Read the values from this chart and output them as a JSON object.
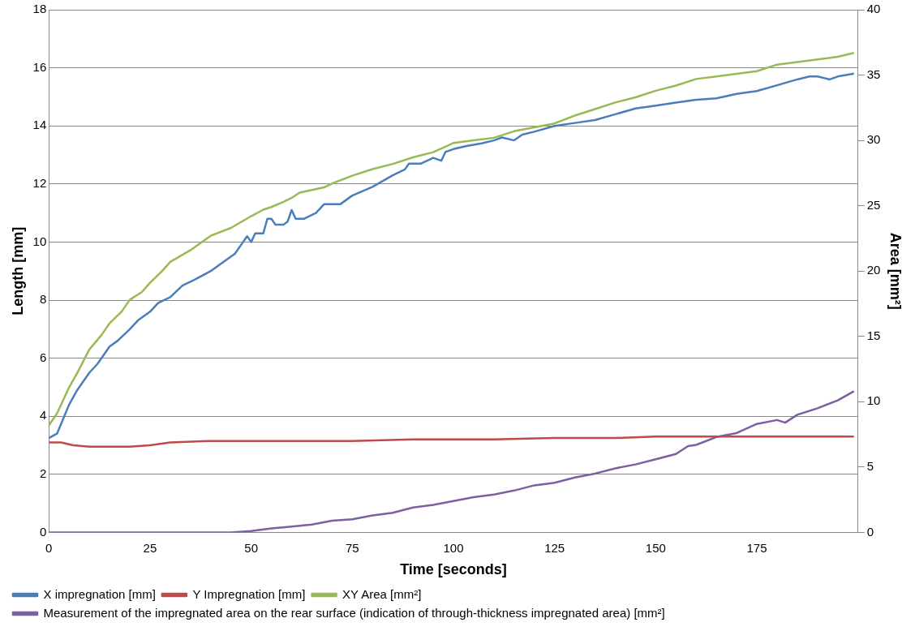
{
  "chart_data": {
    "type": "line",
    "xlabel": "Time [seconds]",
    "ylabel": "Length [mm]",
    "y2label": "Area [mm²]",
    "xlim": [
      0,
      200
    ],
    "xticks": [
      0,
      25,
      50,
      75,
      100,
      125,
      150,
      175
    ],
    "ylim": [
      0,
      18
    ],
    "yticks": [
      0,
      2,
      4,
      6,
      8,
      10,
      12,
      14,
      16,
      18
    ],
    "y2lim": [
      0,
      40
    ],
    "y2ticks": [
      0,
      5,
      10,
      15,
      20,
      25,
      30,
      35,
      40
    ],
    "grid": "y",
    "legend": "bottom",
    "marker": "none",
    "line_style": "solid",
    "series": [
      {
        "name": "X impregnation [mm]",
        "color": "#4a7ebb",
        "x": [
          0,
          2,
          5,
          7,
          10,
          12,
          15,
          17,
          20,
          22,
          25,
          27,
          30,
          33,
          36,
          40,
          43,
          46,
          48,
          49,
          50,
          51,
          53,
          54,
          55,
          56,
          58,
          59,
          60,
          61,
          63,
          66,
          68,
          70,
          72,
          75,
          80,
          85,
          88,
          89,
          92,
          95,
          97,
          98,
          100,
          103,
          107,
          110,
          112,
          115,
          117,
          120,
          125,
          130,
          135,
          140,
          145,
          150,
          155,
          160,
          165,
          170,
          175,
          180,
          185,
          188,
          190,
          193,
          195,
          199
        ],
        "values": [
          3.25,
          3.4,
          4.4,
          4.9,
          5.5,
          5.8,
          6.4,
          6.6,
          7.0,
          7.3,
          7.6,
          7.9,
          8.1,
          8.5,
          8.7,
          9.0,
          9.3,
          9.6,
          10.0,
          10.2,
          10.0,
          10.3,
          10.3,
          10.8,
          10.8,
          10.6,
          10.6,
          10.7,
          11.1,
          10.8,
          10.8,
          11.0,
          11.3,
          11.3,
          11.3,
          11.6,
          11.9,
          12.3,
          12.5,
          12.7,
          12.7,
          12.9,
          12.8,
          13.1,
          13.2,
          13.3,
          13.4,
          13.5,
          13.6,
          13.5,
          13.7,
          13.8,
          14.0,
          14.1,
          14.2,
          14.4,
          14.6,
          14.7,
          14.8,
          14.9,
          14.95,
          15.1,
          15.2,
          15.4,
          15.6,
          15.7,
          15.7,
          15.6,
          15.7,
          15.8
        ]
      },
      {
        "name": "Y Impregnation [mm]",
        "color": "#be4b48",
        "x": [
          0,
          3,
          6,
          10,
          15,
          20,
          25,
          30,
          40,
          50,
          60,
          75,
          90,
          100,
          110,
          125,
          140,
          150,
          165,
          175,
          190,
          199
        ],
        "values": [
          3.1,
          3.1,
          3.0,
          2.95,
          2.95,
          2.95,
          3.0,
          3.1,
          3.15,
          3.15,
          3.15,
          3.15,
          3.2,
          3.2,
          3.2,
          3.25,
          3.25,
          3.3,
          3.3,
          3.3,
          3.3,
          3.3
        ]
      },
      {
        "name": "XY Area [mm²]",
        "color": "#98b954",
        "axis": "y2",
        "x": [
          0,
          2,
          5,
          7,
          10,
          13,
          15,
          18,
          20,
          23,
          25,
          28,
          30,
          35,
          40,
          45,
          50,
          53,
          55,
          58,
          60,
          62,
          65,
          68,
          70,
          75,
          80,
          85,
          90,
          95,
          100,
          105,
          110,
          115,
          120,
          125,
          130,
          135,
          140,
          145,
          150,
          155,
          160,
          165,
          170,
          175,
          180,
          185,
          190,
          195,
          199
        ],
        "values": [
          8.2,
          9.1,
          11.1,
          12.2,
          14.0,
          15.1,
          16.0,
          16.9,
          17.8,
          18.4,
          19.1,
          20.0,
          20.7,
          21.6,
          22.7,
          23.3,
          24.2,
          24.7,
          24.9,
          25.3,
          25.6,
          26.0,
          26.2,
          26.4,
          26.7,
          27.3,
          27.8,
          28.2,
          28.7,
          29.1,
          29.8,
          30.0,
          30.2,
          30.7,
          31.0,
          31.3,
          31.9,
          32.4,
          32.9,
          33.3,
          33.8,
          34.2,
          34.7,
          34.9,
          35.1,
          35.3,
          35.8,
          36.0,
          36.2,
          36.4,
          36.7
        ]
      },
      {
        "name": "Measurement of the impregnated area on the rear surface (indication of through-thickness impregnated area) [mm²]",
        "color": "#7d60a0",
        "axis": "y2",
        "x": [
          0,
          45,
          50,
          55,
          60,
          65,
          70,
          75,
          80,
          85,
          90,
          95,
          100,
          105,
          110,
          115,
          120,
          125,
          130,
          135,
          140,
          145,
          150,
          155,
          158,
          160,
          165,
          170,
          175,
          180,
          182,
          185,
          190,
          195,
          199
        ],
        "values": [
          0,
          0,
          0.1,
          0.3,
          0.45,
          0.6,
          0.9,
          1.0,
          1.3,
          1.5,
          1.9,
          2.1,
          2.4,
          2.7,
          2.9,
          3.2,
          3.6,
          3.8,
          4.2,
          4.5,
          4.9,
          5.2,
          5.6,
          6.0,
          6.6,
          6.7,
          7.3,
          7.6,
          8.3,
          8.6,
          8.4,
          9.0,
          9.5,
          10.1,
          10.8
        ]
      }
    ]
  }
}
